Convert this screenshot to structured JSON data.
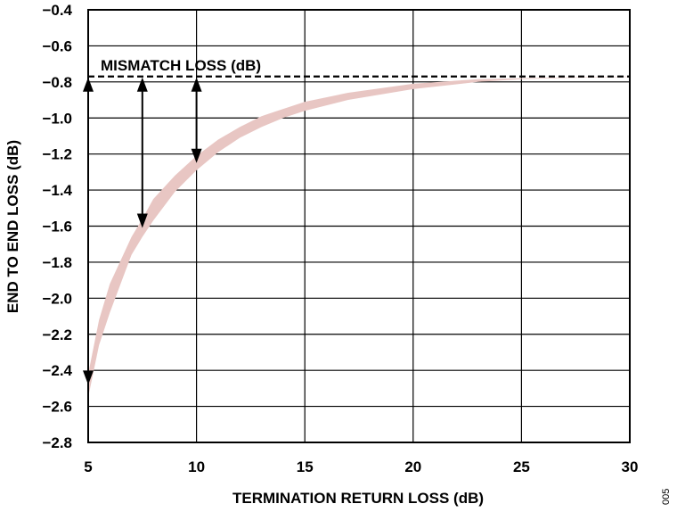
{
  "chart_data": {
    "type": "area",
    "xlabel": "TERMINATION RETURN LOSS (dB)",
    "ylabel": "END TO END LOSS (dB)",
    "xlim": [
      5,
      30
    ],
    "ylim": [
      -2.8,
      -0.4
    ],
    "x_ticks": [
      "5",
      "10",
      "15",
      "20",
      "25",
      "30"
    ],
    "y_ticks": [
      "−0.4",
      "−0.6",
      "−0.8",
      "−1.0",
      "−1.2",
      "−1.4",
      "−1.6",
      "−1.8",
      "−2.0",
      "−2.2",
      "−2.4",
      "−2.6",
      "−2.8"
    ],
    "grid": true,
    "band": {
      "color": "#e8c6c3",
      "x": [
        5,
        5.5,
        6,
        7,
        7.5,
        8,
        9,
        10,
        11,
        12,
        13,
        14,
        15,
        17,
        20,
        23,
        25,
        27,
        30
      ],
      "upper": [
        -2.42,
        -2.12,
        -1.92,
        -1.66,
        -1.56,
        -1.45,
        -1.32,
        -1.21,
        -1.12,
        -1.05,
        -0.99,
        -0.95,
        -0.91,
        -0.86,
        -0.81,
        -0.785,
        -0.78,
        -0.775,
        -0.77
      ],
      "lower": [
        -2.55,
        -2.26,
        -2.08,
        -1.76,
        -1.66,
        -1.57,
        -1.41,
        -1.29,
        -1.19,
        -1.11,
        -1.05,
        -1.0,
        -0.96,
        -0.9,
        -0.84,
        -0.8,
        -0.785,
        -0.778,
        -0.772
      ]
    },
    "reference_line": {
      "y": -0.77,
      "style": "dashed",
      "label": "MISMATCH LOSS (dB)"
    },
    "arrows": [
      {
        "x": 5,
        "y_from": -0.77,
        "y_to": -2.48
      },
      {
        "x": 7.5,
        "y_from": -0.77,
        "y_to": -1.61
      },
      {
        "x": 10,
        "y_from": -0.77,
        "y_to": -1.25
      }
    ],
    "figure_id": "005"
  }
}
